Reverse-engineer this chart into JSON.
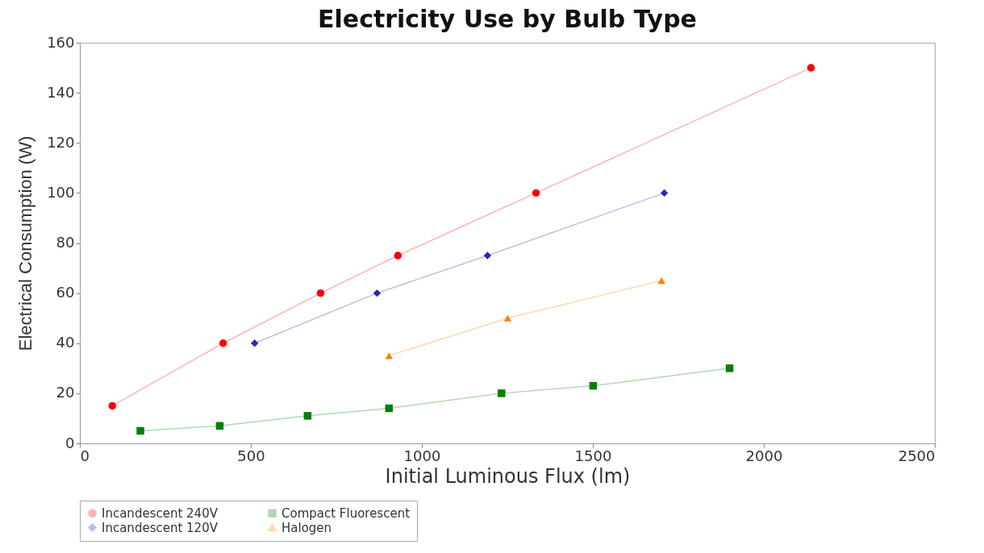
{
  "chart_data": {
    "type": "line",
    "title": "Electricity Use by Bulb Type",
    "xlabel": "Initial Luminous Flux (lm)",
    "ylabel": "Electrical Consumption (W)",
    "xlim": [
      0,
      2500
    ],
    "xticks": [
      0,
      500,
      1000,
      1500,
      2000,
      2500
    ],
    "ylim": [
      0,
      160
    ],
    "yticks": [
      0,
      20,
      40,
      60,
      80,
      100,
      120,
      140,
      160
    ],
    "grid": false,
    "legend": "bottom",
    "line_style": "solid",
    "series": [
      {
        "name": "Incandescent 240V",
        "color": "#ff0000",
        "marker": "circle",
        "x": [
          95,
          419,
          704,
          930,
          1334,
          2138
        ],
        "values": [
          15,
          40,
          60,
          75,
          100,
          150
        ]
      },
      {
        "name": "Compact Fluorescent",
        "color": "#008000",
        "marker": "square",
        "x": [
          177,
          409,
          666,
          904,
          1233,
          1501,
          1900
        ],
        "values": [
          5,
          7,
          11,
          14,
          20,
          23,
          30
        ]
      },
      {
        "name": "Incandescent 120V",
        "color": "#2a2ab0",
        "marker": "diamond",
        "x": [
          511,
          869,
          1192,
          1709
        ],
        "values": [
          40,
          60,
          75,
          100
        ]
      },
      {
        "name": "Halogen",
        "color": "#ff8000",
        "marker": "triangle",
        "x": [
          904,
          1251,
          1701
        ],
        "values": [
          35,
          50,
          65
        ]
      }
    ]
  }
}
